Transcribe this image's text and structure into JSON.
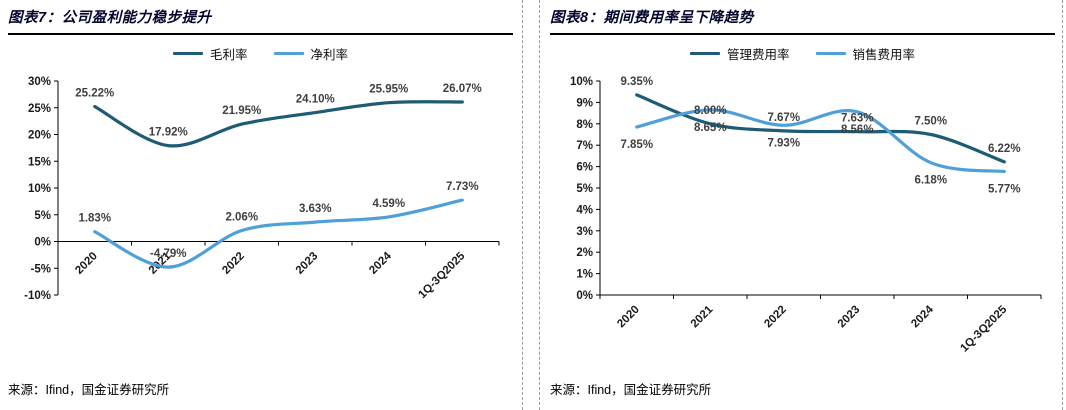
{
  "chart_data": [
    {
      "type": "line",
      "title": "图表7：公司盈利能力稳步提升",
      "source": "来源：Ifind，国金证券研究所",
      "categories": [
        "2020",
        "2021",
        "2022",
        "2023",
        "2024",
        "1Q-3Q2025"
      ],
      "series": [
        {
          "name": "毛利率",
          "color": "#1d5c74",
          "values": [
            25.22,
            17.92,
            21.95,
            24.1,
            25.95,
            26.07
          ],
          "labels": [
            "25.22%",
            "17.92%",
            "21.95%",
            "24.10%",
            "25.95%",
            "26.07%"
          ],
          "label_position": "above"
        },
        {
          "name": "净利率",
          "color": "#4f9fd9",
          "values": [
            1.83,
            -4.79,
            2.06,
            3.63,
            4.59,
            7.73
          ],
          "labels": [
            "1.83%",
            "-4.79%",
            "2.06%",
            "3.63%",
            "4.59%",
            "7.73%"
          ],
          "label_position": "above"
        }
      ],
      "ylim": [
        -10,
        30
      ],
      "ytick_step": 5,
      "ytick_suffix": "%",
      "legend_position": "top",
      "grid": false
    },
    {
      "type": "line",
      "title": "图表8：期间费用率呈下降趋势",
      "source": "来源：Ifind，国金证券研究所",
      "categories": [
        "2020",
        "2021",
        "2022",
        "2023",
        "2024",
        "1Q-3Q2025"
      ],
      "series": [
        {
          "name": "管理费用率",
          "color": "#1d5c74",
          "values": [
            9.35,
            8.0,
            7.67,
            7.63,
            7.5,
            6.22
          ],
          "labels": [
            "9.35%",
            "8.00%",
            "7.67%",
            "7.63%",
            "7.50%",
            "6.22%"
          ],
          "label_position": "above"
        },
        {
          "name": "销售费用率",
          "color": "#4f9fd9",
          "values": [
            7.85,
            8.65,
            7.93,
            8.56,
            6.18,
            5.77
          ],
          "labels": [
            "7.85%",
            "8.65%",
            "7.93%",
            "8.56%",
            "6.18%",
            "5.77%"
          ],
          "label_position": "below"
        }
      ],
      "ylim": [
        0,
        10
      ],
      "ytick_step": 1,
      "ytick_suffix": "%",
      "legend_position": "top",
      "grid": false
    }
  ],
  "style": {
    "axis_color": "#000000",
    "tick_label_color": "#1a1a1a",
    "data_label_color": "#3f3f3f",
    "divider_color": "#9a9a9a"
  }
}
